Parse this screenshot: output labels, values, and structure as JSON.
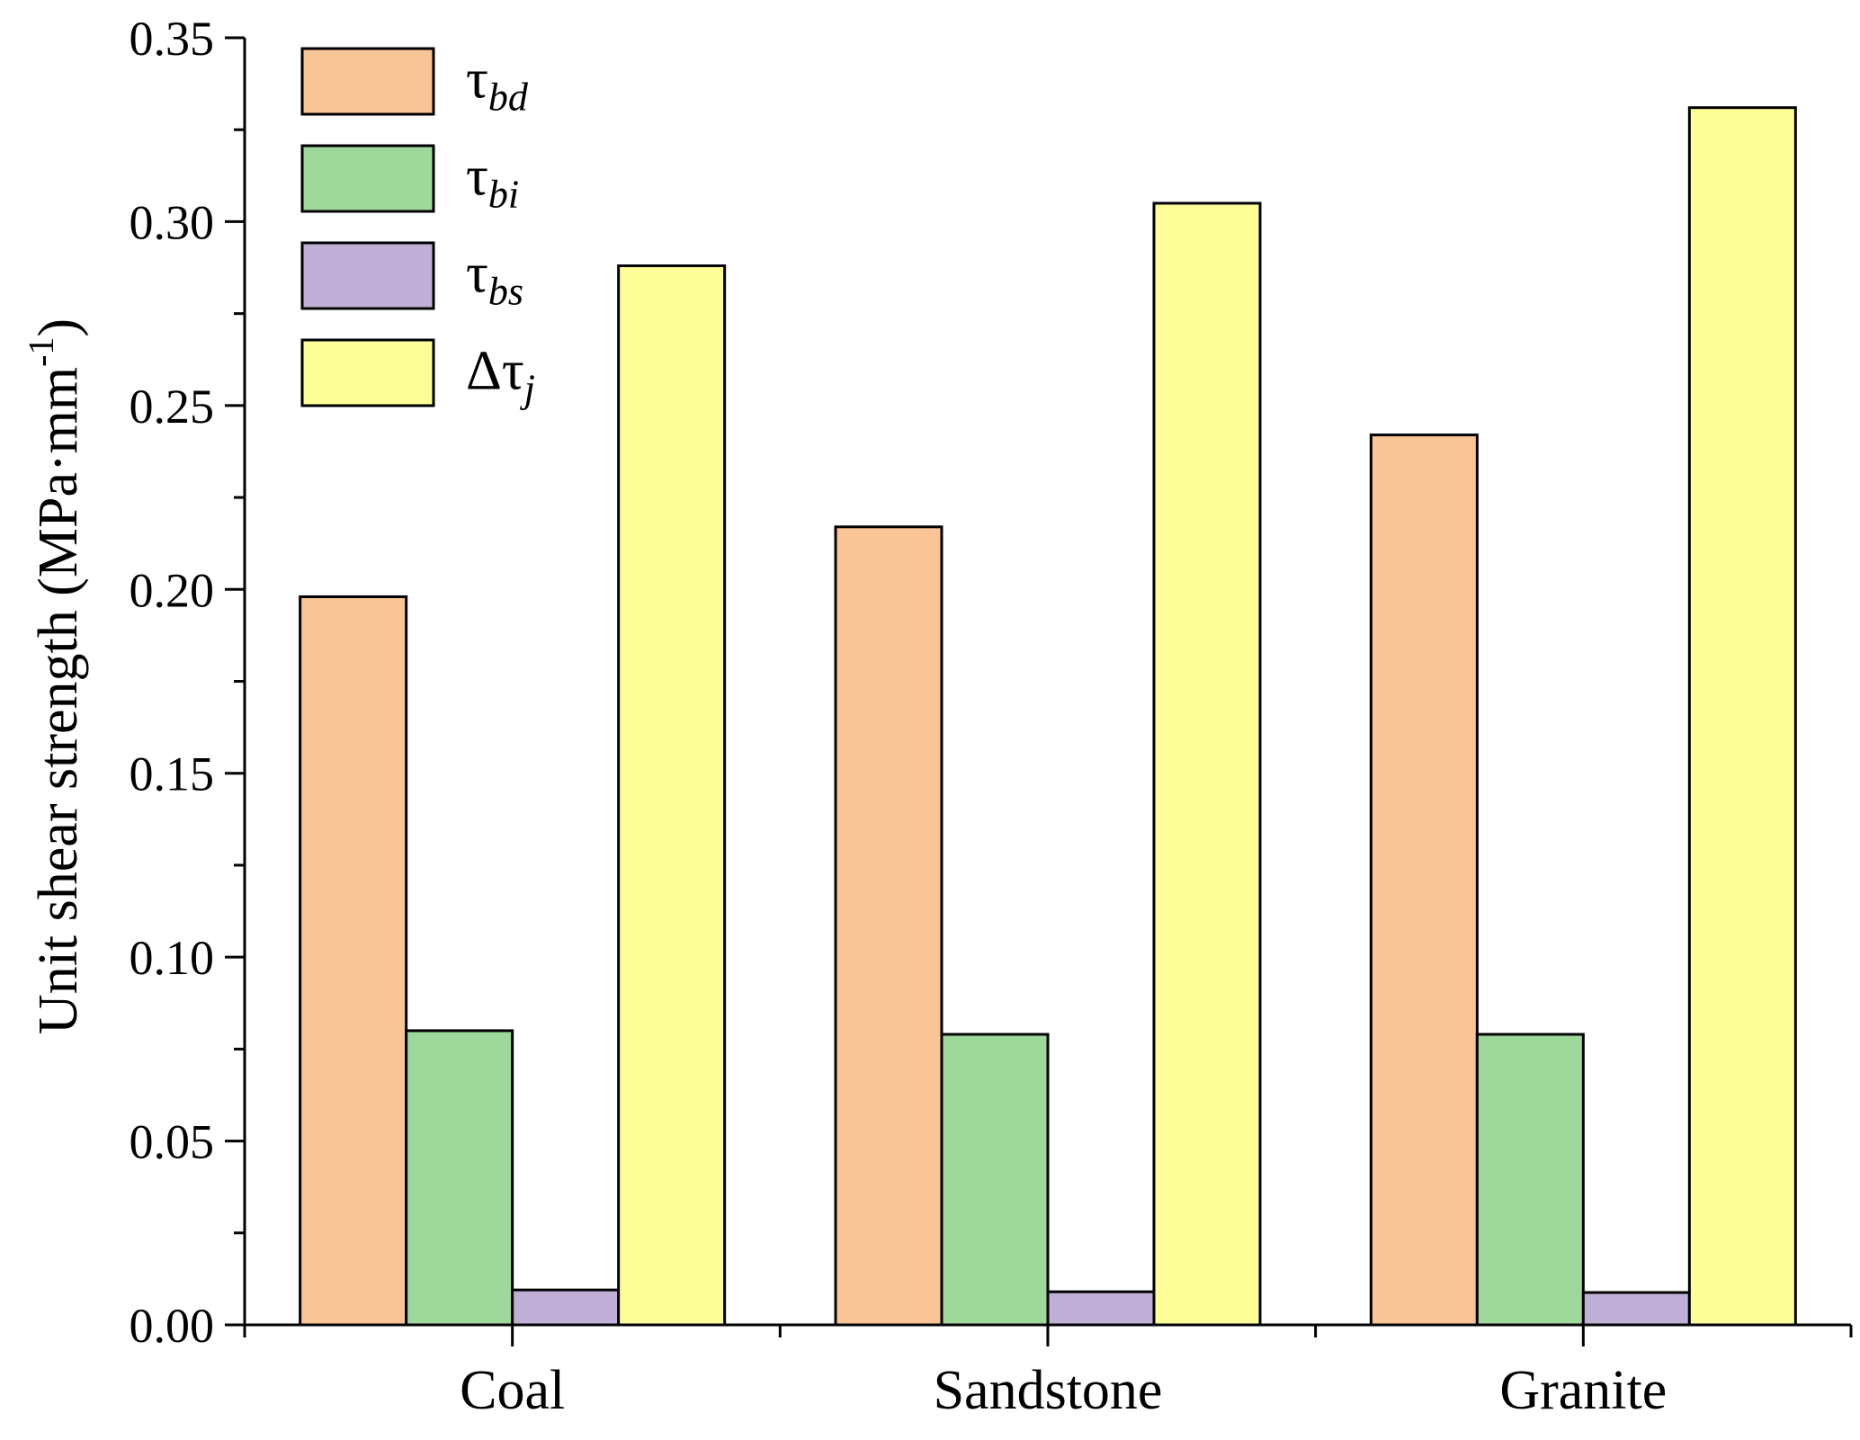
{
  "chart_data": {
    "type": "bar",
    "title": "",
    "xlabel": "",
    "ylabel": "Unit shear strength (MPa·mm",
    "ylabel_sup": "-1",
    "ylabel_close": ")",
    "categories": [
      "Coal",
      "Sandstone",
      "Granite"
    ],
    "ylim": [
      0,
      0.35
    ],
    "yticks": [
      "0.00",
      "0.05",
      "0.10",
      "0.15",
      "0.20",
      "0.25",
      "0.30",
      "0.35"
    ],
    "grid": false,
    "legend_position": "top-left",
    "series": [
      {
        "name": "τbd",
        "symbol": "τ",
        "subscript": "bd",
        "color": "#f9c596",
        "values": [
          0.198,
          0.217,
          0.242
        ]
      },
      {
        "name": "τbi",
        "symbol": "τ",
        "subscript": "bi",
        "color": "#9fd89b",
        "values": [
          0.08,
          0.079,
          0.079
        ]
      },
      {
        "name": "τbs",
        "symbol": "τ",
        "subscript": "bs",
        "color": "#c0afd6",
        "values": [
          0.0095,
          0.009,
          0.0088
        ]
      },
      {
        "name": "Δτj",
        "symbol": "Δτ",
        "subscript": "j",
        "color": "#ffff99",
        "values": [
          0.288,
          0.305,
          0.331
        ]
      }
    ]
  }
}
